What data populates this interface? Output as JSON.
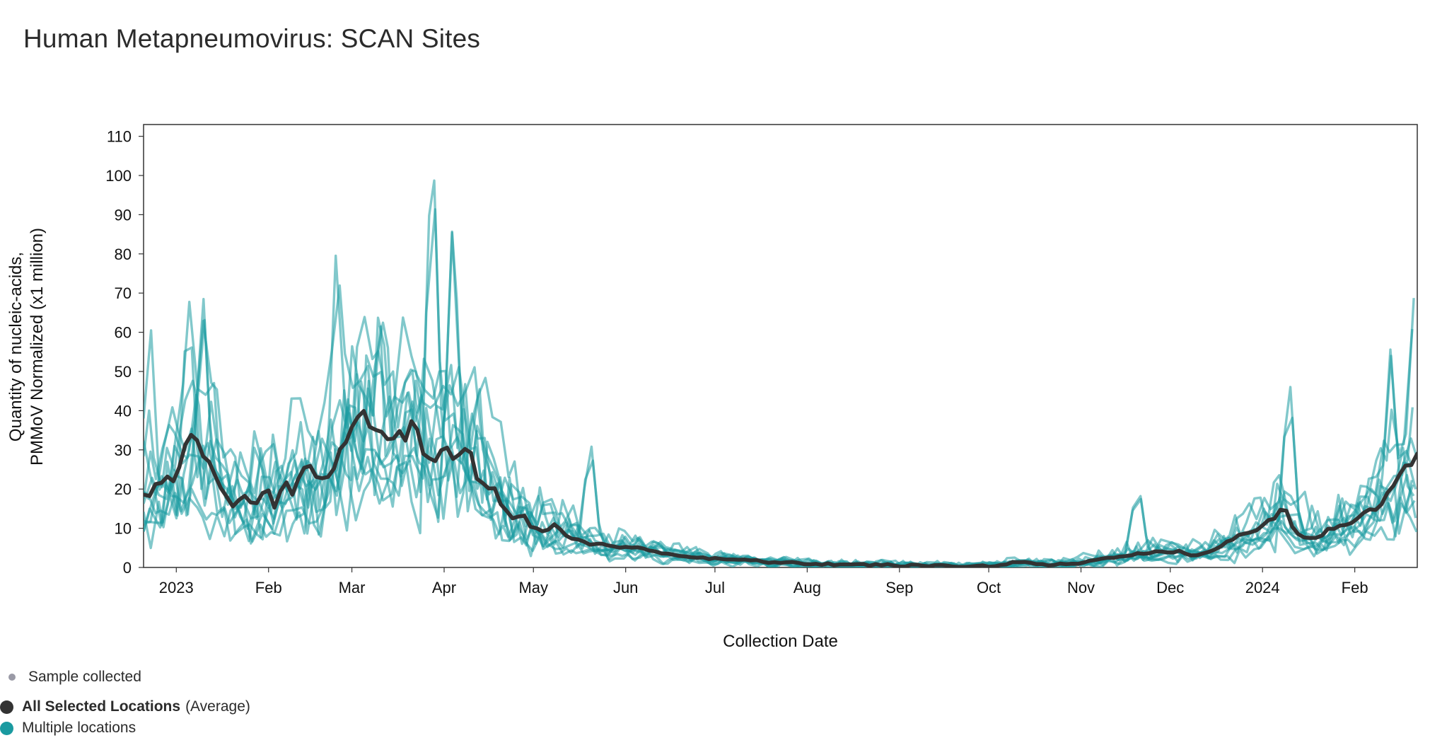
{
  "title": "Human Metapneumovirus: SCAN Sites",
  "chart_data": {
    "type": "line",
    "xlabel": "Collection Date",
    "ylabel_line1": "Quantity of nucleic-acids,",
    "ylabel_line2": "PMMoV Normalized (x1 million)",
    "ylim": [
      0,
      113
    ],
    "y_ticks": [
      0,
      10,
      20,
      30,
      40,
      50,
      60,
      70,
      80,
      90,
      100,
      110
    ],
    "x_range": [
      "2022-12-21",
      "2024-02-22"
    ],
    "x_ticks": [
      {
        "label": "2023",
        "date": "2023-01-01"
      },
      {
        "label": "Feb",
        "date": "2023-02-01"
      },
      {
        "label": "Mar",
        "date": "2023-03-01"
      },
      {
        "label": "Apr",
        "date": "2023-04-01"
      },
      {
        "label": "May",
        "date": "2023-05-01"
      },
      {
        "label": "Jun",
        "date": "2023-06-01"
      },
      {
        "label": "Jul",
        "date": "2023-07-01"
      },
      {
        "label": "Aug",
        "date": "2023-08-01"
      },
      {
        "label": "Sep",
        "date": "2023-09-01"
      },
      {
        "label": "Oct",
        "date": "2023-10-01"
      },
      {
        "label": "Nov",
        "date": "2023-11-01"
      },
      {
        "label": "Dec",
        "date": "2023-12-01"
      },
      {
        "label": "2024",
        "date": "2024-01-01"
      },
      {
        "label": "Feb",
        "date": "2024-02-01"
      }
    ],
    "grid": false,
    "legend_position": "bottom-left",
    "colors": {
      "average": "#333333",
      "locations": "#1a9aa0",
      "sample": "#9a9aa6"
    },
    "average_series": {
      "name": "All Selected Locations",
      "points": [
        [
          "2022-12-21",
          18
        ],
        [
          "2022-12-24",
          20
        ],
        [
          "2022-12-28",
          23
        ],
        [
          "2022-12-31",
          21
        ],
        [
          "2023-01-03",
          28
        ],
        [
          "2023-01-06",
          33
        ],
        [
          "2023-01-09",
          31
        ],
        [
          "2023-01-13",
          24
        ],
        [
          "2023-01-17",
          18
        ],
        [
          "2023-01-20",
          15
        ],
        [
          "2023-01-23",
          19
        ],
        [
          "2023-01-27",
          15
        ],
        [
          "2023-01-31",
          20
        ],
        [
          "2023-02-03",
          16
        ],
        [
          "2023-02-06",
          23
        ],
        [
          "2023-02-09",
          18
        ],
        [
          "2023-02-13",
          25
        ],
        [
          "2023-02-17",
          24
        ],
        [
          "2023-02-20",
          22
        ],
        [
          "2023-02-23",
          26
        ],
        [
          "2023-02-27",
          33
        ],
        [
          "2023-03-02",
          37
        ],
        [
          "2023-03-05",
          38
        ],
        [
          "2023-03-08",
          35
        ],
        [
          "2023-03-11",
          36
        ],
        [
          "2023-03-15",
          33
        ],
        [
          "2023-03-19",
          34
        ],
        [
          "2023-03-22",
          36
        ],
        [
          "2023-03-25",
          30
        ],
        [
          "2023-03-28",
          27
        ],
        [
          "2023-03-31",
          31
        ],
        [
          "2023-04-03",
          28
        ],
        [
          "2023-04-07",
          30
        ],
        [
          "2023-04-10",
          28
        ],
        [
          "2023-04-13",
          22
        ],
        [
          "2023-04-17",
          21
        ],
        [
          "2023-04-20",
          17
        ],
        [
          "2023-04-24",
          12
        ],
        [
          "2023-04-28",
          13
        ],
        [
          "2023-05-01",
          10
        ],
        [
          "2023-05-05",
          9
        ],
        [
          "2023-05-09",
          11
        ],
        [
          "2023-05-12",
          8
        ],
        [
          "2023-05-16",
          7
        ],
        [
          "2023-05-20",
          6
        ],
        [
          "2023-05-25",
          6
        ],
        [
          "2023-05-30",
          5
        ],
        [
          "2023-06-05",
          5
        ],
        [
          "2023-06-12",
          4
        ],
        [
          "2023-06-19",
          3
        ],
        [
          "2023-06-26",
          2.5
        ],
        [
          "2023-07-03",
          2
        ],
        [
          "2023-07-10",
          2
        ],
        [
          "2023-07-17",
          1.5
        ],
        [
          "2023-07-24",
          1.2
        ],
        [
          "2023-07-31",
          1
        ],
        [
          "2023-08-10",
          0.8
        ],
        [
          "2023-08-20",
          0.7
        ],
        [
          "2023-09-01",
          0.5
        ],
        [
          "2023-09-10",
          0.4
        ],
        [
          "2023-09-20",
          0.4
        ],
        [
          "2023-10-01",
          0.3
        ],
        [
          "2023-10-08",
          1
        ],
        [
          "2023-10-14",
          1.5
        ],
        [
          "2023-10-20",
          0.5
        ],
        [
          "2023-10-26",
          0.8
        ],
        [
          "2023-11-01",
          1.2
        ],
        [
          "2023-11-07",
          2
        ],
        [
          "2023-11-14",
          3
        ],
        [
          "2023-11-21",
          3.5
        ],
        [
          "2023-11-28",
          4
        ],
        [
          "2023-12-04",
          4
        ],
        [
          "2023-12-10",
          3
        ],
        [
          "2023-12-17",
          5
        ],
        [
          "2023-12-24",
          8
        ],
        [
          "2023-12-31",
          10
        ],
        [
          "2024-01-05",
          13
        ],
        [
          "2024-01-08",
          16
        ],
        [
          "2024-01-12",
          9
        ],
        [
          "2024-01-16",
          7
        ],
        [
          "2024-01-20",
          8
        ],
        [
          "2024-01-24",
          10
        ],
        [
          "2024-01-28",
          11
        ],
        [
          "2024-02-01",
          12
        ],
        [
          "2024-02-05",
          14
        ],
        [
          "2024-02-09",
          16
        ],
        [
          "2024-02-13",
          20
        ],
        [
          "2024-02-17",
          24
        ],
        [
          "2024-02-21",
          28
        ]
      ]
    },
    "location_series_envelope": {
      "name": "Multiple locations",
      "peak_points": [
        [
          "2022-12-23",
          58
        ],
        [
          "2023-01-05",
          57
        ],
        [
          "2023-01-10",
          56
        ],
        [
          "2023-02-24",
          74
        ],
        [
          "2023-03-28",
          102
        ],
        [
          "2023-04-04",
          78
        ],
        [
          "2023-04-12",
          45
        ],
        [
          "2023-05-20",
          32
        ],
        [
          "2023-11-20",
          22
        ],
        [
          "2024-01-10",
          44
        ],
        [
          "2024-02-13",
          46
        ],
        [
          "2024-02-21",
          57
        ]
      ]
    }
  },
  "legend": {
    "sample_label": "Sample collected",
    "average_label": "All Selected Locations",
    "average_suffix": "(Average)",
    "locations_label": "Multiple locations"
  }
}
